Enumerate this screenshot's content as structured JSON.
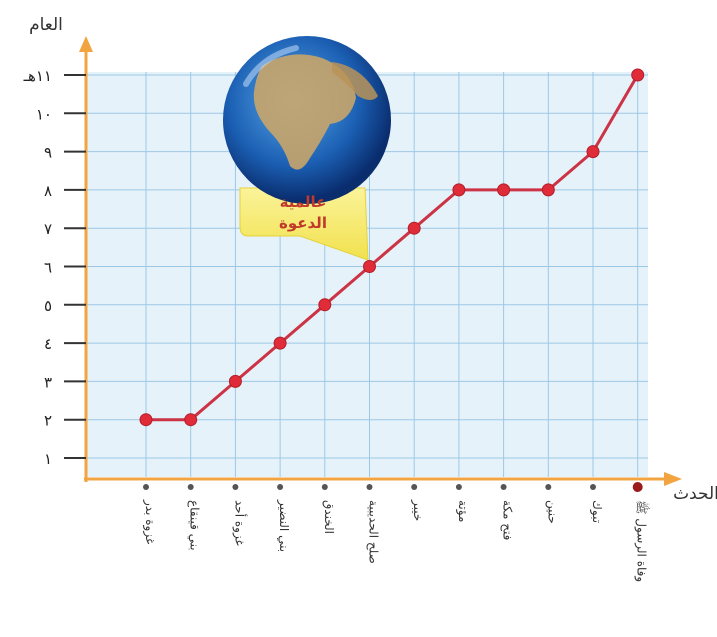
{
  "chart_data": {
    "type": "line",
    "ylabel": "العام",
    "xlabel": "الحدث",
    "ytick_labels": [
      "١",
      "٢",
      "٣",
      "٤",
      "٥",
      "٦",
      "٧",
      "٨",
      "٩",
      "١٠",
      "١١هـ"
    ],
    "ylim": [
      0.5,
      11.5
    ],
    "grid": true,
    "categories": [
      "غزوة بدر",
      "بني قينقاع",
      "غزوة أحد",
      "بني النضير",
      "الخندق",
      "صلح الحديبية",
      "خيبر",
      "مؤتة",
      "فتح مكة",
      "حنين",
      "تبوك",
      "وفاة الرسول ﷺ"
    ],
    "series": [
      {
        "values": [
          2,
          2,
          3,
          4,
          5,
          6,
          7,
          8,
          8,
          8,
          9,
          11
        ]
      }
    ],
    "annotation": {
      "line1": "عالمية",
      "line2": "الدعوة"
    },
    "colors": {
      "line": "#cc3344",
      "marker": "#e02b38",
      "axis": "#f2a440",
      "grid": "#9cc8e6",
      "plot_bg": "#e6f2fa",
      "callout": "#f5ec78"
    }
  }
}
